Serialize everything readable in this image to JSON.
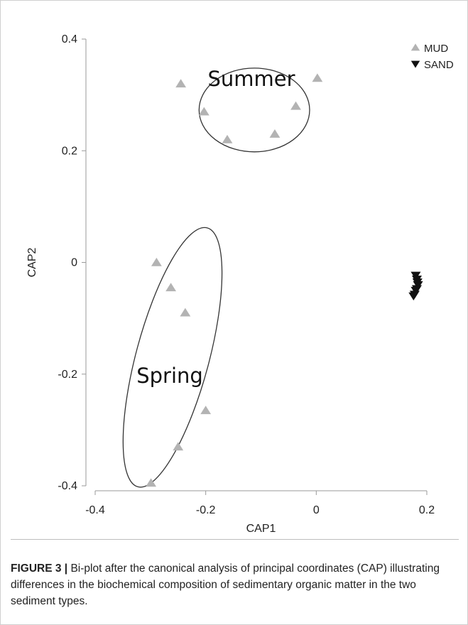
{
  "chart_data": {
    "type": "scatter",
    "title": "",
    "xlabel": "CAP1",
    "ylabel": "CAP2",
    "xlim": [
      -0.4,
      0.2
    ],
    "ylim": [
      -0.4,
      0.4
    ],
    "x_ticks": [
      -0.4,
      -0.2,
      0,
      0.2
    ],
    "x_tick_labels": [
      "-0.4",
      "-0.2",
      "0",
      "0.2"
    ],
    "y_ticks": [
      0.4,
      0.2,
      0,
      -0.2,
      -0.4
    ],
    "y_tick_labels": [
      "0.4",
      "0.2",
      "0",
      "-0.2",
      "-0.4"
    ],
    "grid": false,
    "legend_position": "top-right",
    "series": [
      {
        "name": "MUD",
        "marker": "triangle-up",
        "color": "#b3b3b3",
        "points": [
          {
            "x": -0.245,
            "y": 0.32
          },
          {
            "x": -0.203,
            "y": 0.27
          },
          {
            "x": -0.161,
            "y": 0.22
          },
          {
            "x": -0.075,
            "y": 0.23
          },
          {
            "x": -0.037,
            "y": 0.28
          },
          {
            "x": 0.002,
            "y": 0.33
          },
          {
            "x": -0.289,
            "y": 0.0
          },
          {
            "x": -0.263,
            "y": -0.045
          },
          {
            "x": -0.237,
            "y": -0.09
          },
          {
            "x": -0.2,
            "y": -0.265
          },
          {
            "x": -0.25,
            "y": -0.33
          },
          {
            "x": -0.299,
            "y": -0.395
          }
        ]
      },
      {
        "name": "SAND",
        "marker": "triangle-down",
        "color": "#111111",
        "points": [
          {
            "x": 0.18,
            "y": -0.023
          },
          {
            "x": 0.182,
            "y": -0.03
          },
          {
            "x": 0.184,
            "y": -0.04
          },
          {
            "x": 0.18,
            "y": -0.05
          },
          {
            "x": 0.178,
            "y": -0.057
          },
          {
            "x": 0.182,
            "y": -0.047
          },
          {
            "x": 0.183,
            "y": -0.035
          },
          {
            "x": 0.176,
            "y": -0.06
          }
        ]
      }
    ],
    "groups": [
      {
        "label": "Summer",
        "center": {
          "x": -0.112,
          "y": 0.273
        },
        "rx": 0.1,
        "ry": 0.075,
        "rotation": 0
      },
      {
        "label": "Spring",
        "center": {
          "x": -0.26,
          "y": -0.17
        },
        "rx": 0.066,
        "ry": 0.24,
        "rotation": 15
      }
    ]
  },
  "caption": {
    "lead": "FIGURE 3 |",
    "text": " Bi-plot after the canonical analysis of principal coordinates (CAP) illustrating differences in the biochemical composition of sedimentary organic matter in the two sediment types."
  },
  "colors": {
    "axis": "#999999",
    "text": "#222222",
    "mud": "#b3b3b3",
    "sand": "#111111",
    "ellipse": "#333333"
  }
}
